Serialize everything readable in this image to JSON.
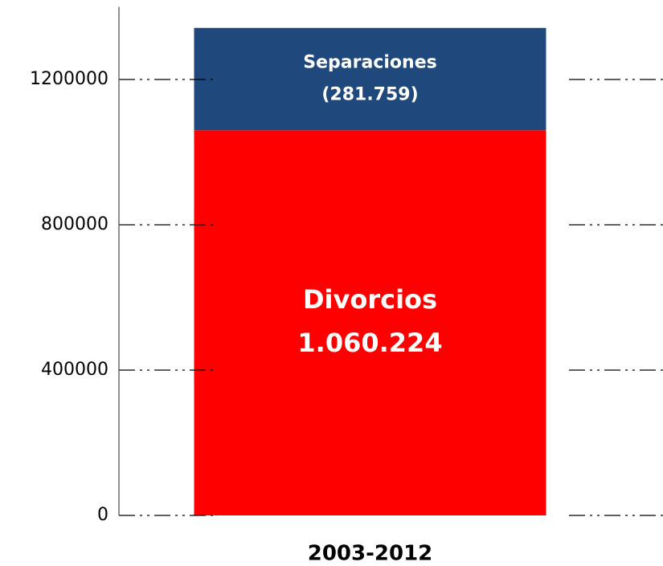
{
  "chart_data": {
    "type": "stacked_bar",
    "categories": [
      "2003-2012"
    ],
    "series": [
      {
        "name": "Divorcios",
        "color": "#ff0000",
        "values": [
          1060224
        ],
        "value_labels": [
          "1.060.224"
        ]
      },
      {
        "name": "Separaciones",
        "color": "#1f497d",
        "values": [
          281759
        ],
        "value_labels": [
          "(281.759)"
        ]
      }
    ],
    "ylim": [
      0,
      1400000
    ],
    "yticks": [
      0,
      400000,
      800000,
      1200000
    ],
    "grid": true
  }
}
